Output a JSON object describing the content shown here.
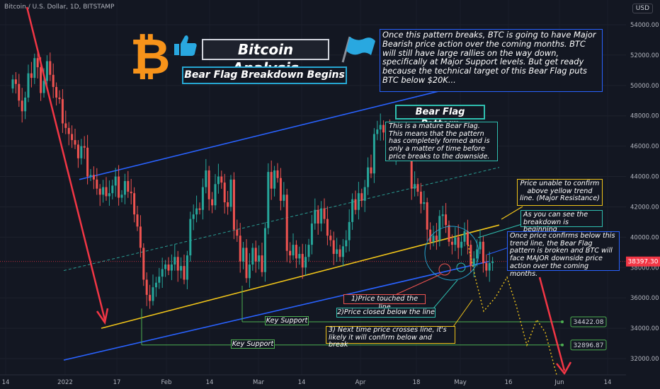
{
  "header": {
    "symbol": "Bitcoin / U.S. Dollar, 1D, BITSTAMP",
    "currency": "USD"
  },
  "annotations": {
    "title": "Bitcoin Analysis",
    "subtitle": "Bear Flag Breakdown Begins",
    "top_note": "Once this pattern breaks, BTC is going to have Major Bearish price action over the coming months. BTC will still have large rallies on the way down, specifically at Major Support levels. But get ready because the technical target of this Bear Flag puts BTC below $20K...",
    "flag_title": "Bear Flag Pattern",
    "flag_note": "This is a mature Bear Flag. This means that the pattern has completely formed and is only a matter of time before price breaks to the downside.",
    "yellow_note": "Price unable to confirm above yellow trend line. (Major Resistance)",
    "breakdown_note": "As you can see the breakdown is beginning",
    "confirm_note": "Once price confirms below this trend line, the Bear Flag pattern is broken and BTC will face MAJOR downside price action over the coming months.",
    "touch_note": "1)Price touched the line",
    "close_note": "2)Price closed below the line",
    "next_note": "3) Next time price crosses line, it's likely it will confirm below and break",
    "key_support_1": "Key Support",
    "key_support_2": "Key Support"
  },
  "icons": [
    "bitcoin-logo-icon",
    "thumbs-up-icon",
    "flag-icon"
  ],
  "colors": {
    "background": "#131722",
    "up": "#26a69a",
    "down": "#ef5350",
    "channel": "#2962ff",
    "trendline": "#f0c419",
    "support": "#4caf50",
    "last_price": "#f23645"
  },
  "chart_data": {
    "type": "candlestick",
    "symbol": "BTCUSD",
    "timeframe": "1D",
    "y_axis": {
      "ticks": [
        32000,
        34000,
        36000,
        38000,
        40000,
        42000,
        44000,
        46000,
        48000,
        50000,
        52000,
        54000
      ],
      "tick_labels": [
        "32000.00",
        "34000.00",
        "36000.00",
        "38000.00",
        "40000.00",
        "42000.00",
        "44000.00",
        "46000.00",
        "48000.00",
        "50000.00",
        "52000.00",
        "54000.00"
      ],
      "range": [
        31200,
        55400
      ]
    },
    "x_axis": {
      "tick_labels": [
        "14",
        "2022",
        "17",
        "Feb",
        "14",
        "Mar",
        "14",
        "Apr",
        "18",
        "May",
        "16",
        "Jun",
        "14"
      ]
    },
    "price_labels": [
      {
        "text": "38397.30",
        "value": 38397.3
      },
      {
        "text": "34422.08",
        "value": 34422.08
      },
      {
        "text": "32896.87",
        "value": 32896.87
      }
    ],
    "closes": [
      50400,
      50100,
      49000,
      48300,
      49200,
      50800,
      50500,
      51800,
      51200,
      49500,
      50300,
      51600,
      50700,
      49900,
      49200,
      49100,
      47500,
      47200,
      46800,
      46400,
      46100,
      45200,
      46000,
      45900,
      44000,
      44100,
      43800,
      43200,
      42800,
      43300,
      42700,
      42900,
      43400,
      44000,
      42600,
      42800,
      43700,
      43000,
      42900,
      41500,
      40700,
      39300,
      37200,
      36200,
      35800,
      36700,
      37000,
      37400,
      37900,
      38200,
      37800,
      38200,
      38700,
      37800,
      38100,
      37200,
      38800,
      41200,
      41500,
      41900,
      41800,
      43300,
      44400,
      42500,
      42100,
      43500,
      44000,
      43600,
      42300,
      42000,
      43800,
      40500,
      40100,
      38400,
      39300,
      37300,
      38200,
      39300,
      38400,
      38800,
      37700,
      40600,
      44300,
      43200,
      44400,
      43900,
      42400,
      42800,
      39100,
      38800,
      39500,
      38600,
      38900,
      38000,
      38700,
      39500,
      40900,
      41800,
      40900,
      41900,
      41200,
      40100,
      39800,
      38900,
      39200,
      38700,
      39400,
      39800,
      41000,
      42500,
      41800,
      42900,
      42400,
      43300,
      44600,
      44200,
      46800,
      47100,
      47400,
      46900,
      47100,
      46400,
      45500,
      46300,
      45900,
      46600,
      46600,
      45600,
      43200,
      43500,
      43000,
      42200,
      42300,
      40500,
      39700,
      40100,
      39800,
      41400,
      41500,
      40800,
      39700,
      39500,
      40000,
      39300,
      39700,
      40400,
      39500,
      38100,
      38600,
      39200,
      39700,
      38300,
      37800,
      38300,
      38400
    ]
  }
}
